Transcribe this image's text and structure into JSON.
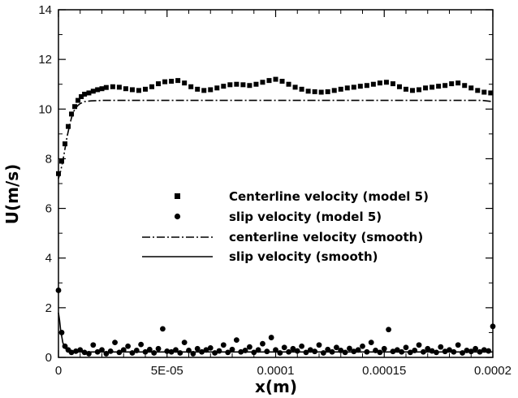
{
  "chart_data": {
    "type": "line",
    "xlabel": "x(m)",
    "ylabel": "U(m/s)",
    "xlim": [
      0,
      0.0002
    ],
    "ylim": [
      0,
      14
    ],
    "x_ticks": [
      0,
      5e-05,
      0.0001,
      0.00015,
      0.0002
    ],
    "x_tick_labels": [
      "0",
      "5E-05",
      "0.0001",
      "0.00015",
      "0.0002"
    ],
    "y_ticks": [
      0,
      2,
      4,
      6,
      8,
      10,
      12,
      14
    ],
    "y_tick_labels": [
      "0",
      "2",
      "4",
      "6",
      "8",
      "10",
      "12",
      "14"
    ],
    "grid": false,
    "legend_position": "center-right",
    "series": [
      {
        "name": "Centerline velocity (model 5)",
        "style": "square-markers",
        "color": "#000000",
        "x": [
          0,
          1.5e-06,
          3e-06,
          4.5e-06,
          6e-06,
          7.5e-06,
          9e-06,
          1.05e-05,
          1.2e-05,
          1.4e-05,
          1.6e-05,
          1.8e-05,
          2e-05,
          2.2e-05,
          2.5e-05,
          2.8e-05,
          3.1e-05,
          3.4e-05,
          3.7e-05,
          4e-05,
          4.3e-05,
          4.6e-05,
          4.9e-05,
          5.2e-05,
          5.5e-05,
          5.8e-05,
          6.1e-05,
          6.4e-05,
          6.7e-05,
          7e-05,
          7.3e-05,
          7.6e-05,
          7.9e-05,
          8.2e-05,
          8.5e-05,
          8.8e-05,
          9.1e-05,
          9.4e-05,
          9.7e-05,
          0.0001,
          0.000103,
          0.000106,
          0.000109,
          0.000112,
          0.000115,
          0.000118,
          0.000121,
          0.000124,
          0.000127,
          0.00013,
          0.000133,
          0.000136,
          0.000139,
          0.000142,
          0.000145,
          0.000148,
          0.000151,
          0.000154,
          0.000157,
          0.00016,
          0.000163,
          0.000166,
          0.000169,
          0.000172,
          0.000175,
          0.000178,
          0.000181,
          0.000184,
          0.000187,
          0.00019,
          0.000193,
          0.000196,
          0.000199
        ],
        "values": [
          7.4,
          7.9,
          8.6,
          9.3,
          9.8,
          10.1,
          10.35,
          10.5,
          10.6,
          10.65,
          10.72,
          10.78,
          10.82,
          10.87,
          10.9,
          10.88,
          10.82,
          10.78,
          10.75,
          10.8,
          10.9,
          11.02,
          11.1,
          11.12,
          11.15,
          11.05,
          10.9,
          10.8,
          10.75,
          10.78,
          10.85,
          10.92,
          10.98,
          11.0,
          10.98,
          10.95,
          11.0,
          11.08,
          11.15,
          11.2,
          11.12,
          11.0,
          10.88,
          10.8,
          10.72,
          10.7,
          10.68,
          10.7,
          10.75,
          10.8,
          10.85,
          10.88,
          10.92,
          10.95,
          11.0,
          11.05,
          11.08,
          11.02,
          10.9,
          10.8,
          10.75,
          10.78,
          10.85,
          10.88,
          10.92,
          10.95,
          11.02,
          11.05,
          10.95,
          10.85,
          10.75,
          10.68,
          10.65
        ]
      },
      {
        "name": "slip velocity (model 5)",
        "style": "circle-markers",
        "color": "#000000",
        "x": [
          0,
          1.5e-06,
          3e-06,
          4.5e-06,
          6e-06,
          8e-06,
          1e-05,
          1.2e-05,
          1.4e-05,
          1.6e-05,
          1.8e-05,
          2e-05,
          2.2e-05,
          2.4e-05,
          2.6e-05,
          2.8e-05,
          3e-05,
          3.2e-05,
          3.4e-05,
          3.6e-05,
          3.8e-05,
          4e-05,
          4.2e-05,
          4.4e-05,
          4.6e-05,
          4.8e-05,
          5e-05,
          5.2e-05,
          5.4e-05,
          5.6e-05,
          5.8e-05,
          6e-05,
          6.2e-05,
          6.4e-05,
          6.6e-05,
          6.8e-05,
          7e-05,
          7.2e-05,
          7.4e-05,
          7.6e-05,
          7.8e-05,
          8e-05,
          8.2e-05,
          8.4e-05,
          8.6e-05,
          8.8e-05,
          9e-05,
          9.2e-05,
          9.4e-05,
          9.6e-05,
          9.8e-05,
          0.0001,
          0.000102,
          0.000104,
          0.000106,
          0.000108,
          0.00011,
          0.000112,
          0.000114,
          0.000116,
          0.000118,
          0.00012,
          0.000122,
          0.000124,
          0.000126,
          0.000128,
          0.00013,
          0.000132,
          0.000134,
          0.000136,
          0.000138,
          0.00014,
          0.000142,
          0.000144,
          0.000146,
          0.000148,
          0.00015,
          0.000152,
          0.000154,
          0.000156,
          0.000158,
          0.00016,
          0.000162,
          0.000164,
          0.000166,
          0.000168,
          0.00017,
          0.000172,
          0.000174,
          0.000176,
          0.000178,
          0.00018,
          0.000182,
          0.000184,
          0.000186,
          0.000188,
          0.00019,
          0.000192,
          0.000194,
          0.000196,
          0.000198,
          0.0002
        ],
        "values": [
          2.7,
          1.0,
          0.45,
          0.3,
          0.2,
          0.25,
          0.3,
          0.2,
          0.15,
          0.5,
          0.22,
          0.3,
          0.15,
          0.25,
          0.6,
          0.2,
          0.3,
          0.45,
          0.18,
          0.28,
          0.52,
          0.22,
          0.32,
          0.18,
          0.35,
          1.15,
          0.25,
          0.22,
          0.3,
          0.18,
          0.6,
          0.28,
          0.15,
          0.35,
          0.22,
          0.3,
          0.38,
          0.18,
          0.26,
          0.5,
          0.2,
          0.32,
          0.7,
          0.22,
          0.28,
          0.42,
          0.2,
          0.3,
          0.55,
          0.24,
          0.8,
          0.3,
          0.18,
          0.4,
          0.22,
          0.35,
          0.26,
          0.45,
          0.2,
          0.3,
          0.24,
          0.5,
          0.18,
          0.32,
          0.22,
          0.4,
          0.28,
          0.2,
          0.36,
          0.24,
          0.3,
          0.45,
          0.22,
          0.6,
          0.28,
          0.2,
          0.35,
          1.12,
          0.24,
          0.3,
          0.22,
          0.4,
          0.2,
          0.28,
          0.5,
          0.22,
          0.35,
          0.26,
          0.2,
          0.42,
          0.24,
          0.3,
          0.22,
          0.5,
          0.18,
          0.28,
          0.24,
          0.35,
          0.22,
          0.3,
          0.26,
          1.25
        ]
      },
      {
        "name": "centerline velocity (smooth)",
        "style": "dash-dot-line",
        "color": "#000000",
        "x": [
          0,
          1e-06,
          2e-06,
          3e-06,
          4e-06,
          5e-06,
          6e-06,
          7e-06,
          8e-06,
          9e-06,
          1e-05,
          1.2e-05,
          1.5e-05,
          2e-05,
          3e-05,
          5e-05,
          0.0001,
          0.00015,
          0.000195,
          0.0002
        ],
        "values": [
          7.2,
          7.5,
          7.9,
          8.4,
          8.9,
          9.3,
          9.65,
          9.9,
          10.05,
          10.15,
          10.22,
          10.3,
          10.33,
          10.35,
          10.35,
          10.35,
          10.35,
          10.35,
          10.35,
          10.3
        ]
      },
      {
        "name": "slip velocity (smooth)",
        "style": "solid-line",
        "color": "#000000",
        "x": [
          0,
          5e-07,
          1e-06,
          2e-06,
          3e-06,
          4e-06,
          5e-06,
          6e-06,
          8e-06,
          1e-05,
          1.5e-05,
          2e-05,
          5e-05,
          0.0001,
          0.00015,
          0.0002
        ],
        "values": [
          1.8,
          1.5,
          1.1,
          0.6,
          0.38,
          0.3,
          0.26,
          0.24,
          0.22,
          0.22,
          0.22,
          0.22,
          0.22,
          0.22,
          0.22,
          0.22
        ]
      }
    ]
  }
}
